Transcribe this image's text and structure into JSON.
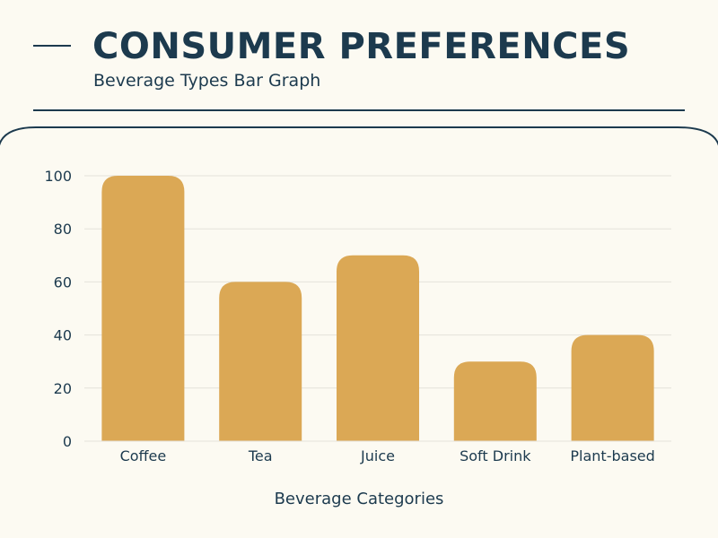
{
  "header": {
    "title": "CONSUMER PREFERENCES",
    "subtitle": "Beverage Types Bar Graph"
  },
  "colors": {
    "background": "#fcfaf2",
    "navy": "#1c3a4e",
    "bar": "#dba855",
    "grid": "#e4e2da"
  },
  "chart_data": {
    "type": "bar",
    "title": "CONSUMER PREFERENCES",
    "subtitle": "Beverage Types Bar Graph",
    "categories": [
      "Coffee",
      "Tea",
      "Juice",
      "Soft Drink",
      "Plant-based"
    ],
    "values": [
      100,
      60,
      70,
      30,
      40
    ],
    "xlabel": "Beverage Categories",
    "ylabel": "",
    "ylim": [
      0,
      100
    ],
    "yticks": [
      0,
      20,
      40,
      60,
      80,
      100
    ],
    "grid": true,
    "legend": "none"
  }
}
